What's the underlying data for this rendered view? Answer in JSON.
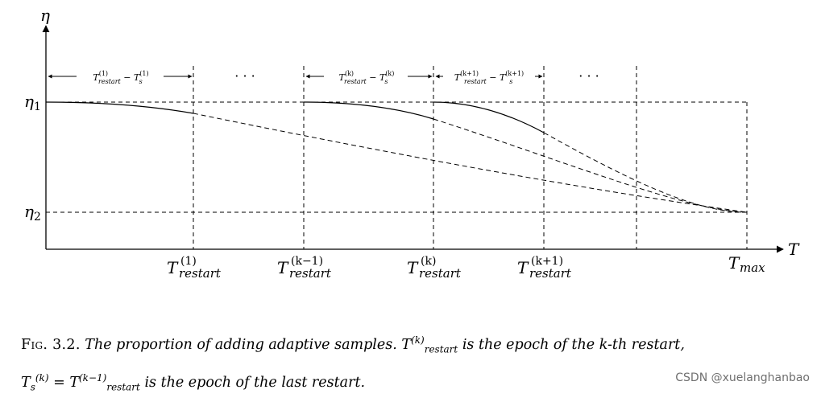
{
  "chart_data": {
    "type": "line",
    "title": "",
    "xlabel": "T",
    "ylabel": "η",
    "y_levels": [
      "η1",
      "η2"
    ],
    "x_ticks": [
      {
        "base": "T",
        "sup": "(1)",
        "sub": "restart"
      },
      {
        "base": "T",
        "sup": "(k−1)",
        "sub": "restart"
      },
      {
        "base": "T",
        "sup": "(k)",
        "sub": "restart"
      },
      {
        "base": "T",
        "sup": "(k+1)",
        "sub": "restart"
      },
      {
        "base": "T",
        "sup": "",
        "sub": "max"
      }
    ],
    "interval_labels": [
      {
        "text": "T(1)restart − T(1)s"
      },
      {
        "text": "T(k)restart − T(k)s"
      },
      {
        "text": "T(k+1)restart − T(k+1)s"
      }
    ],
    "ellipsis": "· · ·",
    "series_style": "solid segment within each restart interval, dashed continuation to Tmax; all curves decay from η1 to η2"
  },
  "caption": {
    "lead": "Fig. 3.2.",
    "text_1": "The proportion of adding adaptive samples.",
    "text_2": "is the epoch of the k-th restart,",
    "text_3": "is the epoch of the last restart."
  },
  "watermark": "CSDN @xuelanghanbao"
}
